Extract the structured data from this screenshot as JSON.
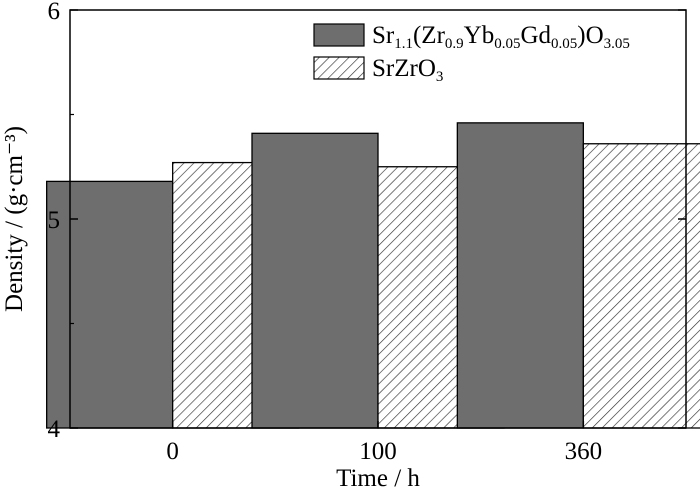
{
  "chart_data": {
    "type": "bar",
    "categories": [
      "0",
      "100",
      "360"
    ],
    "series": [
      {
        "name": "Sr1.1(Zr0.9Yb0.05Gd0.05)O3.05",
        "name_parts": [
          {
            "t": "Sr",
            "sub": false
          },
          {
            "t": "1.1",
            "sub": true
          },
          {
            "t": "(Zr",
            "sub": false
          },
          {
            "t": "0.9",
            "sub": true
          },
          {
            "t": "Yb",
            "sub": false
          },
          {
            "t": "0.05",
            "sub": true
          },
          {
            "t": "Gd",
            "sub": false
          },
          {
            "t": "0.05",
            "sub": true
          },
          {
            "t": ")O",
            "sub": false
          },
          {
            "t": "3.05",
            "sub": true
          }
        ],
        "values": [
          5.18,
          5.41,
          5.46
        ],
        "fill": "solid",
        "color": "#6e6e6e"
      },
      {
        "name": "SrZrO3",
        "name_parts": [
          {
            "t": "SrZrO",
            "sub": false
          },
          {
            "t": "3",
            "sub": true
          }
        ],
        "values": [
          5.27,
          5.25,
          5.36
        ],
        "fill": "hatch",
        "color": "#ffffff"
      }
    ],
    "xlabel": "Time / h",
    "ylabel": "Density / (g·cm⁻³)",
    "ylim": [
      4,
      6
    ],
    "yticks": [
      "4",
      "5",
      "6"
    ],
    "grid": false,
    "legend_position": "top-right"
  }
}
